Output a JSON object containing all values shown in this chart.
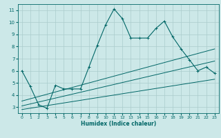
{
  "bg_color": "#cce8e8",
  "grid_color": "#aacccc",
  "line_color": "#006666",
  "xlabel": "Humidex (Indice chaleur)",
  "xlim": [
    -0.5,
    23.5
  ],
  "ylim": [
    2.5,
    11.5
  ],
  "yticks": [
    3,
    4,
    5,
    6,
    7,
    8,
    9,
    10,
    11
  ],
  "xticks": [
    0,
    1,
    2,
    3,
    4,
    5,
    6,
    7,
    8,
    9,
    10,
    11,
    12,
    13,
    14,
    15,
    16,
    17,
    18,
    19,
    20,
    21,
    22,
    23
  ],
  "main_x": [
    0,
    1,
    2,
    3,
    4,
    5,
    6,
    7,
    8,
    9,
    10,
    11,
    12,
    13,
    14,
    15,
    16,
    17,
    18,
    19,
    20,
    21,
    22,
    23
  ],
  "main_y": [
    6.0,
    4.7,
    3.2,
    2.9,
    4.8,
    4.5,
    4.5,
    4.5,
    6.3,
    8.1,
    9.8,
    11.1,
    10.3,
    8.7,
    8.7,
    8.7,
    9.5,
    10.1,
    8.8,
    7.8,
    6.9,
    6.0,
    6.3,
    5.8
  ],
  "trend1_x": [
    0,
    23
  ],
  "trend1_y": [
    2.8,
    5.3
  ],
  "trend2_x": [
    0,
    23
  ],
  "trend2_y": [
    3.1,
    6.8
  ],
  "trend3_x": [
    0,
    23
  ],
  "trend3_y": [
    3.5,
    7.8
  ],
  "xlabel_fontsize": 5.5,
  "tick_fontsize": 4.5,
  "lw_main": 0.8,
  "lw_trend": 0.7,
  "marker_size": 2.5
}
